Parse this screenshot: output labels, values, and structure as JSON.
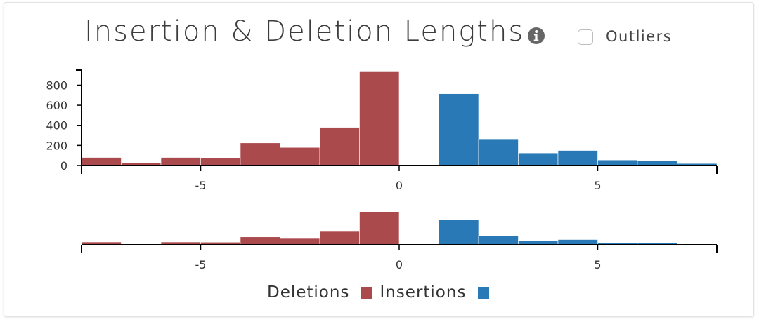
{
  "title": "Insertion & Deletion Lengths",
  "outliers_label": "Outliers",
  "outliers_checked": false,
  "icons": {
    "info": "info-circle-icon"
  },
  "colors": {
    "deletions": "#ab4a4c",
    "insertions": "#2879b6",
    "axis": "#000000",
    "text": "#333333"
  },
  "legend": [
    {
      "label": "Deletions",
      "color": "#ab4a4c"
    },
    {
      "label": "Insertions",
      "color": "#2879b6"
    }
  ],
  "chart_data": [
    {
      "type": "bar",
      "title": "",
      "xlabel": "",
      "ylabel": "",
      "xlim": [
        -8,
        8
      ],
      "ylim": [
        0,
        950
      ],
      "x_ticks": [
        -5,
        0,
        5
      ],
      "y_ticks": [
        0,
        200,
        400,
        600,
        800
      ],
      "series": [
        {
          "name": "Deletions",
          "color": "#ab4a4c",
          "bins": [
            [
              -8,
              -7
            ],
            [
              -7,
              -6
            ],
            [
              -6,
              -5
            ],
            [
              -5,
              -4
            ],
            [
              -4,
              -3
            ],
            [
              -3,
              -2
            ],
            [
              -2,
              -1
            ],
            [
              -1,
              0
            ]
          ],
          "values": [
            80,
            25,
            80,
            75,
            225,
            180,
            380,
            940
          ]
        },
        {
          "name": "Insertions",
          "color": "#2879b6",
          "bins": [
            [
              1,
              2
            ],
            [
              2,
              3
            ],
            [
              3,
              4
            ],
            [
              4,
              5
            ],
            [
              5,
              6
            ],
            [
              6,
              7
            ],
            [
              7,
              8
            ]
          ],
          "values": [
            715,
            265,
            125,
            150,
            55,
            50,
            20
          ]
        }
      ]
    },
    {
      "type": "bar",
      "title": "",
      "xlabel": "",
      "ylabel": "",
      "xlim": [
        -8,
        8
      ],
      "ylim": [
        0,
        940
      ],
      "x_ticks": [
        -5,
        0,
        5
      ],
      "series": [
        {
          "name": "Deletions",
          "color": "#ab4a4c",
          "bins": [
            [
              -8,
              -7
            ],
            [
              -7,
              -6
            ],
            [
              -6,
              -5
            ],
            [
              -5,
              -4
            ],
            [
              -4,
              -3
            ],
            [
              -3,
              -2
            ],
            [
              -2,
              -1
            ],
            [
              -1,
              0
            ]
          ],
          "values": [
            80,
            25,
            80,
            75,
            225,
            180,
            380,
            940
          ]
        },
        {
          "name": "Insertions",
          "color": "#2879b6",
          "bins": [
            [
              1,
              2
            ],
            [
              2,
              3
            ],
            [
              3,
              4
            ],
            [
              4,
              5
            ],
            [
              5,
              6
            ],
            [
              6,
              7
            ],
            [
              7,
              8
            ]
          ],
          "values": [
            715,
            265,
            125,
            150,
            55,
            50,
            20
          ]
        }
      ]
    }
  ]
}
